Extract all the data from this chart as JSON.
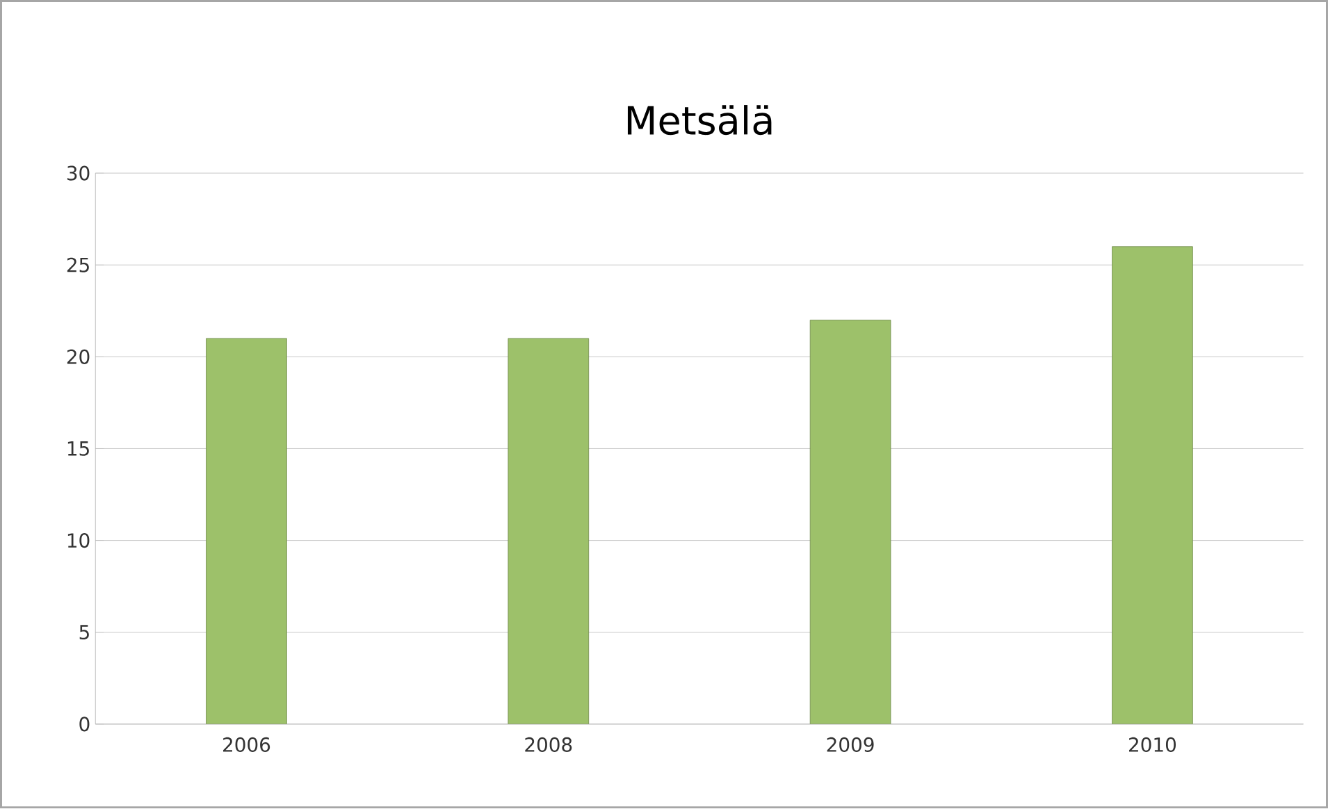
{
  "chart_data": {
    "type": "bar",
    "title": "Metsälä",
    "categories": [
      "2006",
      "2008",
      "2009",
      "2010"
    ],
    "values": [
      21,
      21,
      22,
      26
    ],
    "color": "#9dc16a",
    "ylim": [
      0,
      30
    ],
    "yticks": [
      0,
      5,
      10,
      15,
      20,
      25,
      30
    ],
    "grid": "y"
  }
}
